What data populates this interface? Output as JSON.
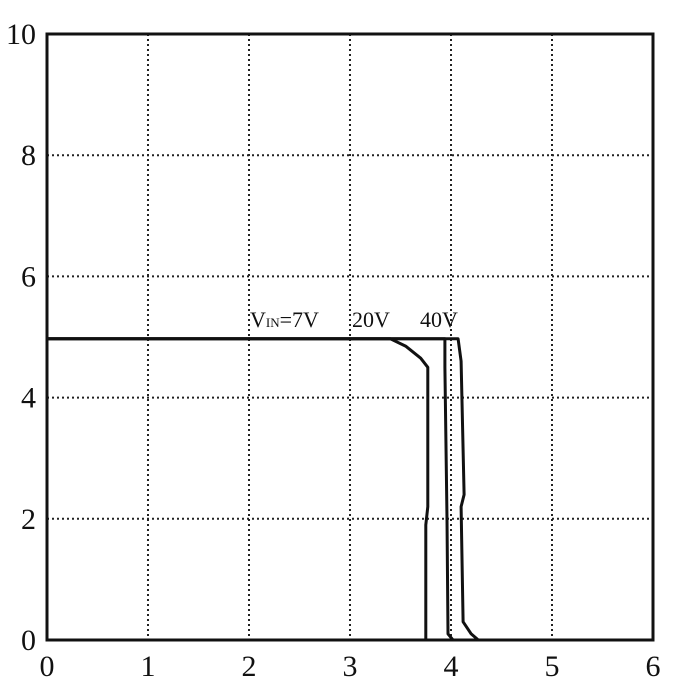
{
  "chart_data": {
    "type": "line",
    "title": "",
    "xlabel": "",
    "ylabel": "",
    "xlim": [
      0,
      6
    ],
    "ylim": [
      0,
      10
    ],
    "x_ticks": [
      "0",
      "1",
      "2",
      "3",
      "4",
      "5",
      "6"
    ],
    "y_ticks": [
      "0",
      "2",
      "4",
      "6",
      "8",
      "10"
    ],
    "grid": true,
    "annotations": {
      "vin_main": "V",
      "vin_sub": "IN",
      "vin_rest": "=7V",
      "v20": "20V",
      "v40": "40V"
    },
    "series": [
      {
        "label": "VIN=7V",
        "points": [
          [
            0,
            4.97
          ],
          [
            3.4,
            4.97
          ],
          [
            3.55,
            4.85
          ],
          [
            3.7,
            4.65
          ],
          [
            3.77,
            4.5
          ],
          [
            3.77,
            2.2
          ],
          [
            3.75,
            1.9
          ],
          [
            3.75,
            0
          ]
        ]
      },
      {
        "label": "20V",
        "points": [
          [
            0,
            4.97
          ],
          [
            3.94,
            4.97
          ],
          [
            3.94,
            4.5
          ],
          [
            3.96,
            2.0
          ],
          [
            3.97,
            0.1
          ],
          [
            4.02,
            0
          ]
        ]
      },
      {
        "label": "40V",
        "points": [
          [
            0,
            4.97
          ],
          [
            4.07,
            4.97
          ],
          [
            4.1,
            4.6
          ],
          [
            4.13,
            2.4
          ],
          [
            4.1,
            2.2
          ],
          [
            4.12,
            0.3
          ],
          [
            4.2,
            0.1
          ],
          [
            4.27,
            0
          ],
          [
            6,
            0
          ]
        ]
      }
    ]
  }
}
